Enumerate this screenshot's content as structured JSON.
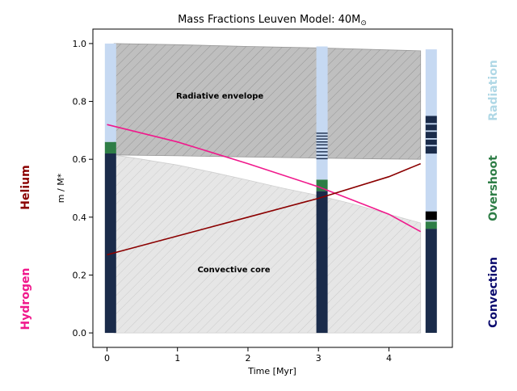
{
  "chart_data": {
    "type": "area",
    "title": "Mass Fractions Leuven Model: 40M",
    "title_symbol": "⊙",
    "xlabel": "Time [Myr]",
    "ylabel": "m / M*",
    "xlim": [
      -0.2,
      4.9
    ],
    "ylim": [
      -0.05,
      1.05
    ],
    "xticks": [
      "0",
      "1",
      "2",
      "3",
      "4"
    ],
    "xtick_values": [
      0,
      1,
      2,
      3,
      4
    ],
    "yticks": [
      "0.0",
      "0.2",
      "0.4",
      "0.6",
      "0.8",
      "1.0"
    ],
    "ytick_values": [
      0.0,
      0.2,
      0.4,
      0.6,
      0.8,
      1.0
    ],
    "grid": false,
    "regions": {
      "radiative_envelope": {
        "label": "Radiative envelope",
        "label_pos": [
          1.6,
          0.81
        ],
        "x": [
          0.1,
          1.0,
          2.0,
          3.0,
          4.0,
          4.45
        ],
        "upper": [
          1.0,
          0.996,
          0.99,
          0.985,
          0.978,
          0.975
        ],
        "lower": [
          0.615,
          0.612,
          0.608,
          0.604,
          0.601,
          0.6
        ],
        "color": "#bfbfbf"
      },
      "convective_core": {
        "label": "Convective core",
        "label_pos": [
          1.8,
          0.21
        ],
        "x": [
          0.1,
          0.5,
          1.0,
          1.5,
          2.0,
          2.5,
          3.0,
          3.5,
          4.0,
          4.45
        ],
        "upper": [
          0.615,
          0.6,
          0.58,
          0.555,
          0.528,
          0.5,
          0.475,
          0.445,
          0.41,
          0.38
        ],
        "color": "#e6e6e6"
      }
    },
    "series": [
      {
        "key": "hydrogen",
        "x": [
          0.0,
          1.0,
          2.0,
          3.0,
          4.0,
          4.45
        ],
        "y": [
          0.72,
          0.66,
          0.585,
          0.505,
          0.41,
          0.35
        ],
        "color": "#f0198c"
      },
      {
        "key": "helium",
        "x": [
          0.0,
          1.0,
          2.0,
          3.0,
          4.0,
          4.45
        ],
        "y": [
          0.27,
          0.335,
          0.4,
          0.465,
          0.54,
          0.585
        ],
        "color": "#8b0000"
      }
    ],
    "columns": [
      {
        "x": 0.05,
        "width": 0.16,
        "segments": [
          {
            "kind": "convection",
            "from": 0.0,
            "to": 0.62
          },
          {
            "kind": "overshoot",
            "from": 0.62,
            "to": 0.66
          },
          {
            "kind": "radiation",
            "from": 0.66,
            "to": 1.0
          }
        ]
      },
      {
        "x": 3.05,
        "width": 0.16,
        "segments": [
          {
            "kind": "convection",
            "from": 0.0,
            "to": 0.49
          },
          {
            "kind": "overshoot",
            "from": 0.49,
            "to": 0.53
          },
          {
            "kind": "radiation",
            "from": 0.53,
            "to": 0.99
          },
          {
            "kind": "convection",
            "from": 0.692,
            "to": 0.688
          },
          {
            "kind": "convection",
            "from": 0.682,
            "to": 0.678
          },
          {
            "kind": "convection",
            "from": 0.672,
            "to": 0.668
          },
          {
            "kind": "convection",
            "from": 0.662,
            "to": 0.658
          },
          {
            "kind": "convection",
            "from": 0.652,
            "to": 0.648
          },
          {
            "kind": "convection",
            "from": 0.64,
            "to": 0.636
          },
          {
            "kind": "convection",
            "from": 0.628,
            "to": 0.624
          },
          {
            "kind": "convection",
            "from": 0.616,
            "to": 0.612
          },
          {
            "kind": "convection",
            "from": 0.604,
            "to": 0.6
          }
        ]
      },
      {
        "x": 4.6,
        "width": 0.16,
        "segments": [
          {
            "kind": "convection",
            "from": 0.0,
            "to": 0.36
          },
          {
            "kind": "overshoot",
            "from": 0.36,
            "to": 0.385
          },
          {
            "kind": "radiation",
            "from": 0.385,
            "to": 0.98
          },
          {
            "kind": "black",
            "from": 0.39,
            "to": 0.42
          },
          {
            "kind": "convection",
            "from": 0.62,
            "to": 0.75
          },
          {
            "kind": "radiation",
            "from": 0.72,
            "to": 0.725
          },
          {
            "kind": "radiation",
            "from": 0.695,
            "to": 0.7
          },
          {
            "kind": "radiation",
            "from": 0.668,
            "to": 0.673
          },
          {
            "kind": "radiation",
            "from": 0.645,
            "to": 0.65
          }
        ]
      }
    ],
    "column_colors": {
      "convection": "#1a2b4a",
      "overshoot": "#2e7d46",
      "radiation": "#c6d9f2",
      "black": "#000000"
    },
    "side_legend": {
      "left": [
        {
          "label": "Helium",
          "color": "#8b0000"
        },
        {
          "label": "Hydrogen",
          "color": "#f0198c"
        }
      ],
      "right": [
        {
          "label": "Radiation",
          "color": "#b0d8e6"
        },
        {
          "label": "Overshoot",
          "color": "#2e7d46"
        },
        {
          "label": "Convection",
          "color": "#0a0a6e"
        }
      ]
    }
  }
}
